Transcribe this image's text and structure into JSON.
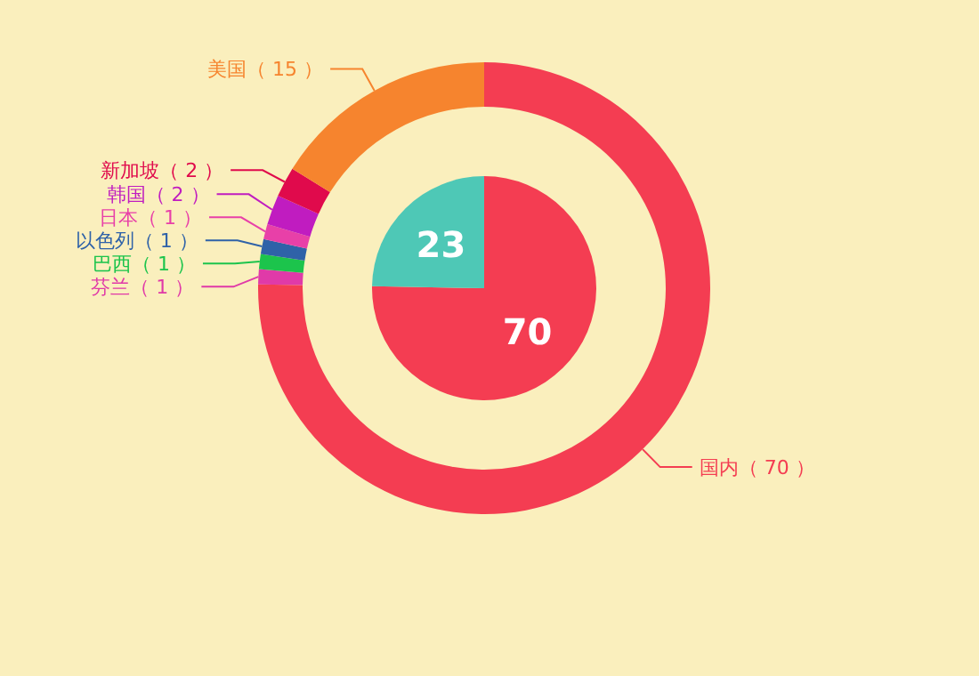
{
  "chart_data": [
    {
      "type": "pie",
      "categories": [
        null,
        null
      ],
      "values": [
        70,
        23
      ],
      "colors": [
        "#f43d52",
        "#4ec8b6"
      ],
      "data_labels": true
    },
    {
      "type": "donut",
      "categories": [
        "国内（ 70 ）",
        "芬兰（ 1 ）",
        "巴西（ 1 ）",
        "以色列（ 1 ）",
        "日本（ 1 ）",
        "韩国（ 2 ）",
        "新加坡（ 2 ）",
        "美国（ 15 ）"
      ],
      "values": [
        70,
        1,
        1,
        1,
        1,
        2,
        2,
        15
      ],
      "colors": [
        "#f43d52",
        "#e03aa8",
        "#1cc44c",
        "#2f62a8",
        "#e840a8",
        "#c01cc0",
        "#e00a4c",
        "#f6842e"
      ]
    }
  ]
}
